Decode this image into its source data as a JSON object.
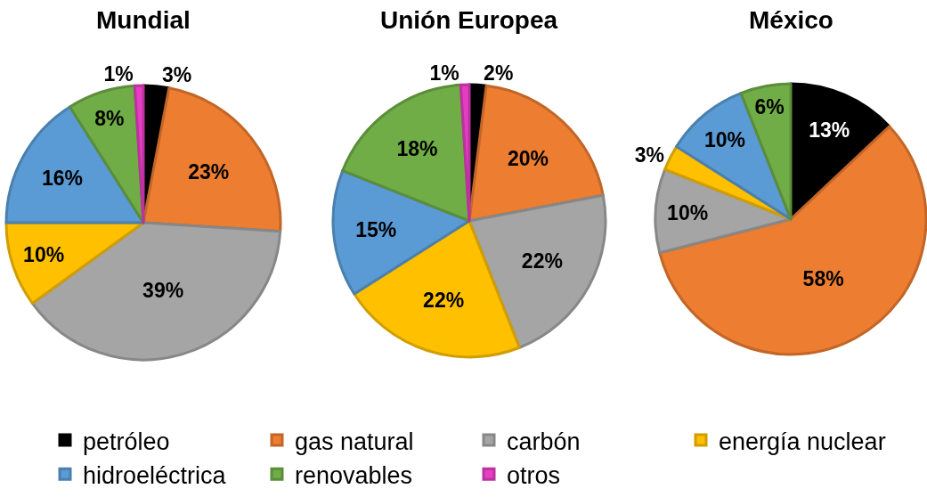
{
  "chart_data": {
    "type": "pie",
    "categories": [
      "petróleo",
      "gas natural",
      "carbón",
      "energía nuclear",
      "hidroeléctrica",
      "renovables",
      "otros"
    ],
    "colors": [
      "#000000",
      "#ed7d31",
      "#a5a5a5",
      "#ffc000",
      "#5b9bd5",
      "#70ad47",
      "#e63ec3"
    ],
    "series": [
      {
        "name": "Mundial",
        "values": [
          3,
          23,
          39,
          10,
          16,
          8,
          1
        ],
        "value_labels": [
          "3%",
          "23%",
          "39%",
          "10%",
          "16%",
          "8%",
          "1%"
        ]
      },
      {
        "name": "Unión Europea",
        "values": [
          2,
          20,
          22,
          22,
          15,
          18,
          1
        ],
        "value_labels": [
          "2%",
          "20%",
          "22%",
          "22%",
          "15%",
          "18%",
          "1%"
        ]
      },
      {
        "name": "México",
        "values": [
          13,
          58,
          10,
          3,
          10,
          6,
          null
        ],
        "value_labels": [
          "13%",
          "58%",
          "10%",
          "3%",
          "10%",
          "6%",
          null
        ]
      }
    ],
    "legend": "bottom"
  }
}
